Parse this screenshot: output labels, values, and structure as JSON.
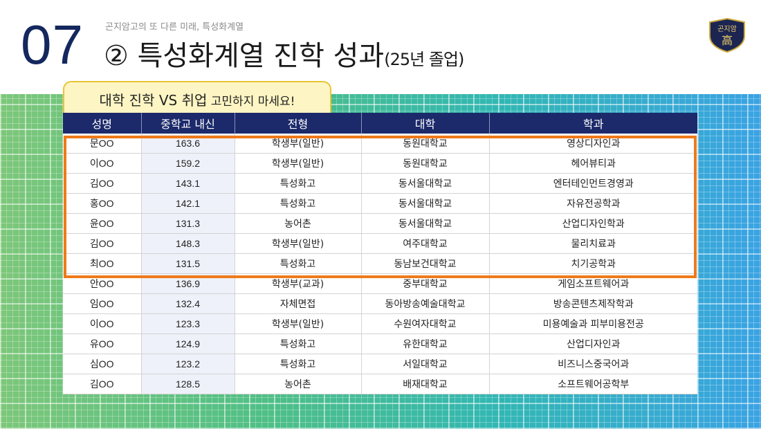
{
  "header": {
    "page_number": "07",
    "subtitle": "곤지암고의 또 다른 미래, 특성화계열",
    "title_main": "② 특성화계열 진학 성과",
    "title_small": "(25년 졸업)",
    "logo_text": "곤지암",
    "logo_char": "高"
  },
  "callout": {
    "main": "대학 진학 VS 취업",
    "small": " 고민하지 마세요!"
  },
  "table": {
    "headers": [
      "성명",
      "중학교 내신",
      "전형",
      "대학",
      "학과"
    ],
    "rows": [
      [
        "문OO",
        "163.6",
        "학생부(일반)",
        "동원대학교",
        "영상디자인과"
      ],
      [
        "이OO",
        "159.2",
        "학생부(일반)",
        "동원대학교",
        "헤어뷰티과"
      ],
      [
        "김OO",
        "143.1",
        "특성화고",
        "동서울대학교",
        "엔터테인먼트경영과"
      ],
      [
        "홍OO",
        "142.1",
        "특성화고",
        "동서울대학교",
        "자유전공학과"
      ],
      [
        "윤OO",
        "131.3",
        "농어촌",
        "동서울대학교",
        "산업디자인학과"
      ],
      [
        "김OO",
        "148.3",
        "학생부(일반)",
        "여주대학교",
        "물리치료과"
      ],
      [
        "최OO",
        "131.5",
        "특성화고",
        "동남보건대학교",
        "치기공학과"
      ],
      [
        "안OO",
        "136.9",
        "학생부(교과)",
        "중부대학교",
        "게임소프트웨어과"
      ],
      [
        "임OO",
        "132.4",
        "자체면접",
        "동아방송예술대학교",
        "방송콘텐츠제작학과"
      ],
      [
        "이OO",
        "123.3",
        "학생부(일반)",
        "수원여자대학교",
        "미용예술과 피부미용전공"
      ],
      [
        "유OO",
        "124.9",
        "특성화고",
        "유한대학교",
        "산업디자인과"
      ],
      [
        "심OO",
        "123.2",
        "특성화고",
        "서일대학교",
        "비즈니스중국어과"
      ],
      [
        "김OO",
        "128.5",
        "농어촌",
        "배재대학교",
        "소프트웨어공학부"
      ]
    ]
  },
  "colors": {
    "header_bg": "#1c2a6b",
    "highlight_border": "#ef7a1a",
    "callout_bg": "#fdf5c3",
    "page_number": "#14285e"
  }
}
